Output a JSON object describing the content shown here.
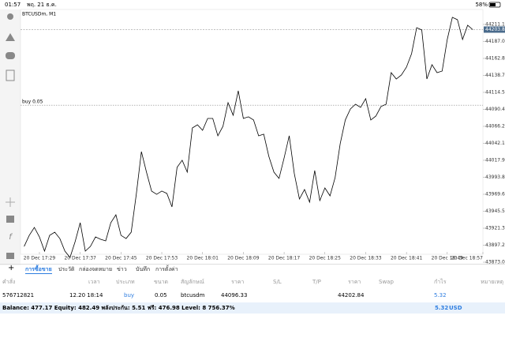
{
  "status_bar": {
    "time": "01:57",
    "date": "พฤ. 21 ธ.ค.",
    "battery": "58%"
  },
  "left_toolbar": {
    "timeframe": "M1"
  },
  "chart_data": {
    "type": "line",
    "title": "BTCUSDm, M1",
    "color": "#000000",
    "values": [
      43895.5,
      43911.2,
      43922.5,
      43909.0,
      43888.8,
      43911.2,
      43915.7,
      43906.7,
      43888.8,
      43879.8,
      43902.3,
      43929.2,
      43888.8,
      43895.5,
      43909.0,
      43905.6,
      43903.4,
      43929.2,
      43940.4,
      43911.2,
      43906.7,
      43915.7,
      43969.6,
      44030.3,
      44001.1,
      43974.2,
      43969.6,
      43974.2,
      43970.8,
      43951.7,
      44007.9,
      44018.0,
      44001.1,
      44064.0,
      44068.5,
      44060.6,
      44077.5,
      44077.5,
      44052.8,
      44066.3,
      44100.0,
      44082.0,
      44116.8,
      44077.5,
      44079.8,
      44075.3,
      44052.8,
      44055.1,
      44023.6,
      44001.1,
      43992.2,
      44021.4,
      44052.8,
      43998.9,
      43962.9,
      43976.4,
      43958.4,
      44003.4,
      43960.7,
      43978.6,
      43967.4,
      43993.3,
      44041.6,
      44075.3,
      44091.0,
      44097.7,
      44093.2,
      44105.6,
      44075.3,
      44080.9,
      44094.4,
      44097.7,
      44142.6,
      44133.6,
      44139.3,
      44150.5,
      44169.6,
      44206.6,
      44203.3,
      44133.6,
      44153.9,
      44142.6,
      44144.9,
      44189.8,
      44221.3,
      44217.9,
      44189.8,
      44210.0,
      44203.8
    ],
    "xlim": [
      0,
      91
    ],
    "xticks": [
      {
        "value": 3,
        "label": "20 Dec 17:29"
      },
      {
        "value": 11,
        "label": "20 Dec 17:37"
      },
      {
        "value": 19,
        "label": "20 Dec 17:45"
      },
      {
        "value": 27,
        "label": "20 Dec 17:53"
      },
      {
        "value": 35,
        "label": "20 Dec 18:01"
      },
      {
        "value": 43,
        "label": "20 Dec 18:09"
      },
      {
        "value": 51,
        "label": "20 Dec 18:17"
      },
      {
        "value": 59,
        "label": "20 Dec 18:25"
      },
      {
        "value": 67,
        "label": "20 Dec 18:33"
      },
      {
        "value": 75,
        "label": "20 Dec 18:41"
      },
      {
        "value": 83,
        "label": "20 Dec 18:49"
      },
      {
        "value": 91,
        "label": "20 Dec 18:57"
      }
    ],
    "ylim": [
      43884.3,
      44230.2
    ],
    "yticks": [
      44211.15,
      {
        "value": 44187,
        "label": "44187.00"
      },
      44162.85,
      {
        "value": 44138.7,
        "label": "44138.70"
      },
      44114.55,
      {
        "value": 44090.4,
        "label": "44090.40"
      },
      44066.25,
      {
        "value": 44042.1,
        "label": "44042.10"
      },
      44017.95,
      {
        "value": 43993.8,
        "label": "43993.80"
      },
      43969.65,
      {
        "value": 43945.5,
        "label": "43945.50"
      },
      43921.35,
      {
        "value": 43897.2,
        "label": "43897.20"
      },
      43873.05
    ],
    "bid": 44203.84,
    "order_line": {
      "label": "buy 0.05",
      "price": 44096.33
    }
  },
  "tabs": [
    "การซื้อขาย",
    "ประวัติ",
    "กล่องจดหมาย",
    "ข่าว",
    "บันทึก",
    "การตั้งค่า"
  ],
  "table": {
    "headers": [
      "คำสั่ง",
      "เวลา",
      "ประเภท",
      "ขนาด",
      "สัญลักษณ์",
      "ราคา",
      "S/L",
      "T/P",
      "ราคา",
      "Swap",
      "กำไร",
      "หมายเหตุ"
    ],
    "rows": [
      [
        "576712821",
        "12.20 18:14",
        "buy",
        "0.05",
        "btcusdm",
        "44096.33",
        "",
        "",
        "44202.84",
        "",
        "5.32",
        ""
      ]
    ]
  },
  "balance": {
    "text": "Balance: 477.17 Equity: 482.49 พลังประกัน: 5.51 ฟรี: 476.98 Level: 8 756.37%",
    "profit": "5.32",
    "currency": "USD"
  }
}
